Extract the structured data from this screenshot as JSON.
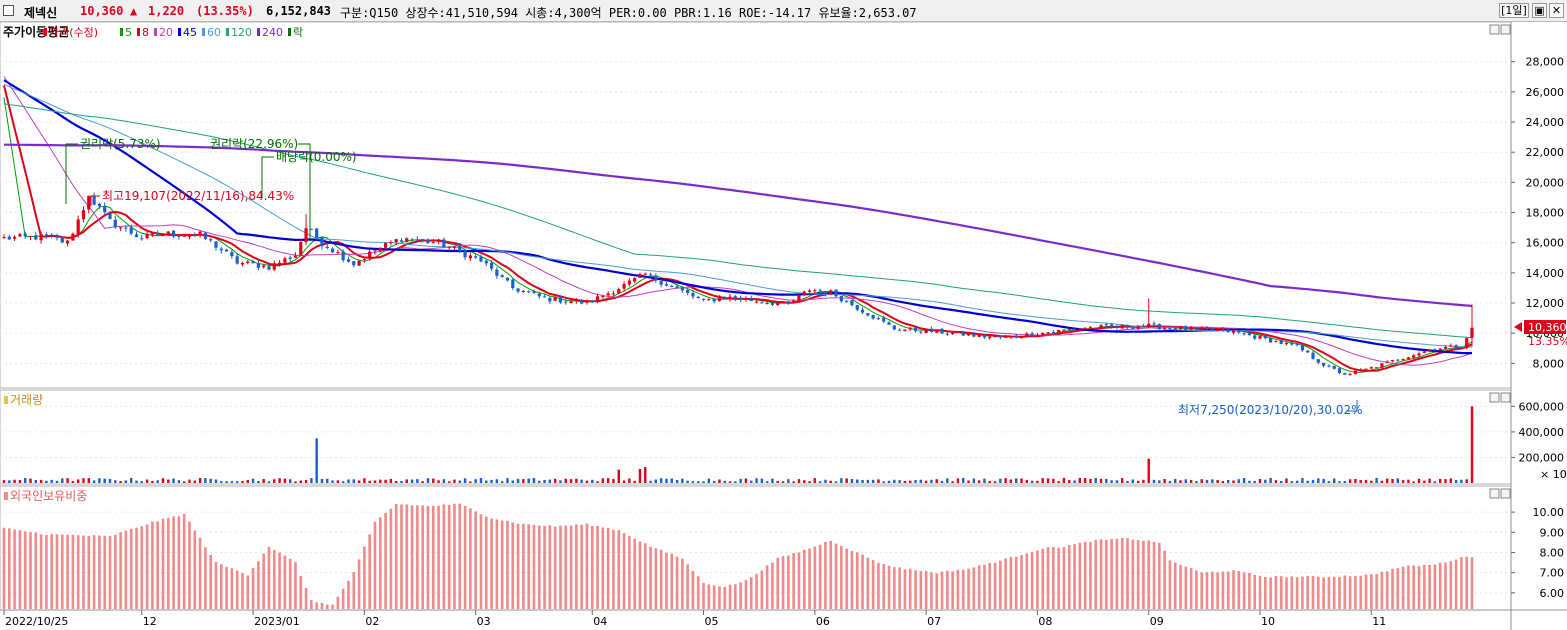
{
  "header": {
    "name": "제넥신",
    "price": "10,360",
    "change_arrow": "▲",
    "change": "1,220",
    "change_pct": "(13.35%)",
    "volume": "6,152,843",
    "info": "구분:Q150 상장수:41,510,594 시총:4,300억 PER:0.00 PBR:1.16 ROE:-14.17 유보율:2,653.07",
    "period_button": "[1일]",
    "minimize_glyph": "▣",
    "close_glyph": "✕"
  },
  "colors": {
    "up": "#e0001b",
    "down": "#1c5fc8",
    "ma5": "#00a000",
    "ma8": "#e0001b",
    "ma20": "#c040c0",
    "ma45": "#0000d0",
    "ma60": "#4a9fd0",
    "ma120": "#20a080",
    "ma240": "#7a2cc8",
    "axis_text": "#000000",
    "grid": "#e8e8e8",
    "foreign_bar": "#f08a8a"
  },
  "price_panel": {
    "legend_title": "주가이동평균",
    "legend_items": [
      {
        "label": "가격(수정)",
        "color": "#e0001b"
      },
      {
        "label": "5",
        "color": "#00a000"
      },
      {
        "label": "8",
        "color": "#e0001b"
      },
      {
        "label": "20",
        "color": "#c040c0"
      },
      {
        "label": "45",
        "color": "#0000d0"
      },
      {
        "label": "60",
        "color": "#4a9fd0"
      },
      {
        "label": "120",
        "color": "#20a080"
      },
      {
        "label": "240",
        "color": "#7a2cc8"
      },
      {
        "label": "락",
        "color": "#007000"
      }
    ],
    "annotations": {
      "rights1": "권리락(5.73%)",
      "rights2": "권리락(22.96%)",
      "dividend": "배당락(0.00%)",
      "high": "최고19,107(2022/11/16),84.43%",
      "low": "최저7,250(2023/10/20),30.02%"
    },
    "last_price_tag": "10,360",
    "last_pct_tag": "13.35%"
  },
  "volume_panel": {
    "title": "거래량",
    "multiplier": "× 10"
  },
  "foreign_panel": {
    "title": "외국인보유비중"
  },
  "x_axis": {
    "labels": [
      "2022/10/25",
      "12",
      "2023/01",
      "02",
      "03",
      "04",
      "05",
      "06",
      "07",
      "08",
      "09",
      "10",
      "11"
    ],
    "label_bar_index": [
      0,
      26,
      47,
      68,
      89,
      111,
      132,
      153,
      174,
      195,
      216,
      237,
      258
    ]
  },
  "chart_data": [
    {
      "type": "line",
      "title": "주가이동평균",
      "y_tick_labels": [
        "8,000",
        "10,000",
        "12,000",
        "14,000",
        "16,000",
        "18,000",
        "20,000",
        "22,000",
        "24,000",
        "26,000",
        "28,000"
      ],
      "ylim": [
        6500,
        30500
      ],
      "n_bars": 278,
      "price_keypoints": [
        [
          0,
          16300
        ],
        [
          8,
          16400
        ],
        [
          12,
          16000
        ],
        [
          14,
          17500
        ],
        [
          16,
          19107
        ],
        [
          20,
          17400
        ],
        [
          26,
          16300
        ],
        [
          30,
          16600
        ],
        [
          37,
          16500
        ],
        [
          40,
          15800
        ],
        [
          44,
          14700
        ],
        [
          50,
          14400
        ],
        [
          55,
          15200
        ],
        [
          57,
          17000
        ],
        [
          60,
          16000
        ],
        [
          66,
          14600
        ],
        [
          70,
          15500
        ],
        [
          75,
          16300
        ],
        [
          82,
          16000
        ],
        [
          90,
          14800
        ],
        [
          96,
          13000
        ],
        [
          102,
          12300
        ],
        [
          110,
          12000
        ],
        [
          116,
          13000
        ],
        [
          121,
          13900
        ],
        [
          126,
          13100
        ],
        [
          132,
          12100
        ],
        [
          136,
          12400
        ],
        [
          143,
          12100
        ],
        [
          148,
          11900
        ],
        [
          152,
          12900
        ],
        [
          156,
          12700
        ],
        [
          162,
          11500
        ],
        [
          168,
          10300
        ],
        [
          176,
          10100
        ],
        [
          184,
          9800
        ],
        [
          189,
          9700
        ],
        [
          193,
          9900
        ],
        [
          200,
          10200
        ],
        [
          205,
          10400
        ],
        [
          210,
          10400
        ],
        [
          216,
          10500
        ],
        [
          222,
          10300
        ],
        [
          232,
          10100
        ],
        [
          238,
          9600
        ],
        [
          244,
          9100
        ],
        [
          249,
          7900
        ],
        [
          253,
          7250
        ],
        [
          258,
          7700
        ],
        [
          265,
          8500
        ],
        [
          270,
          9000
        ],
        [
          275,
          9140
        ],
        [
          277,
          10360
        ]
      ],
      "series": [
        {
          "name": "가격(수정)",
          "role": "candles"
        },
        {
          "name": "5",
          "period": 5
        },
        {
          "name": "8",
          "period": 8
        },
        {
          "name": "20",
          "period": 20
        },
        {
          "name": "45",
          "period": 45
        },
        {
          "name": "60",
          "period": 60
        },
        {
          "name": "120",
          "period": 120
        },
        {
          "name": "240",
          "period": 240
        }
      ]
    },
    {
      "type": "bar",
      "title": "거래량",
      "y_tick_labels": [
        "200,000",
        "400,000",
        "600,000"
      ],
      "ylim": [
        0,
        650000
      ],
      "units": "× 10",
      "spikes": [
        [
          59,
          350000
        ],
        [
          116,
          105000
        ],
        [
          120,
          110000
        ],
        [
          121,
          125000
        ],
        [
          216,
          190000
        ],
        [
          277,
          600000
        ]
      ],
      "base_level": 25000
    },
    {
      "type": "bar",
      "title": "외국인보유비중",
      "y_tick_labels": [
        "6.00",
        "7.00",
        "8.00",
        "9.00",
        "10.00"
      ],
      "ylim": [
        5.2,
        10.6
      ],
      "keypoints": [
        [
          0,
          9.2
        ],
        [
          8,
          8.9
        ],
        [
          20,
          8.8
        ],
        [
          28,
          9.5
        ],
        [
          34,
          9.9
        ],
        [
          40,
          7.5
        ],
        [
          46,
          6.9
        ],
        [
          50,
          8.3
        ],
        [
          55,
          7.5
        ],
        [
          58,
          5.6
        ],
        [
          62,
          5.4
        ],
        [
          66,
          7.0
        ],
        [
          70,
          9.5
        ],
        [
          74,
          10.4
        ],
        [
          80,
          10.3
        ],
        [
          86,
          10.4
        ],
        [
          92,
          9.7
        ],
        [
          98,
          9.4
        ],
        [
          104,
          9.3
        ],
        [
          110,
          9.4
        ],
        [
          116,
          9.1
        ],
        [
          122,
          8.3
        ],
        [
          128,
          7.7
        ],
        [
          132,
          6.5
        ],
        [
          136,
          6.3
        ],
        [
          140,
          6.6
        ],
        [
          146,
          7.7
        ],
        [
          152,
          8.2
        ],
        [
          156,
          8.6
        ],
        [
          160,
          8.1
        ],
        [
          166,
          7.4
        ],
        [
          170,
          7.2
        ],
        [
          176,
          7.0
        ],
        [
          182,
          7.2
        ],
        [
          188,
          7.6
        ],
        [
          196,
          8.2
        ],
        [
          200,
          8.3
        ],
        [
          206,
          8.6
        ],
        [
          212,
          8.7
        ],
        [
          218,
          8.5
        ],
        [
          220,
          7.6
        ],
        [
          226,
          7.0
        ],
        [
          232,
          7.1
        ],
        [
          238,
          6.8
        ],
        [
          244,
          6.8
        ],
        [
          250,
          6.8
        ],
        [
          258,
          6.9
        ],
        [
          264,
          7.3
        ],
        [
          270,
          7.4
        ],
        [
          276,
          7.8
        ]
      ]
    }
  ]
}
